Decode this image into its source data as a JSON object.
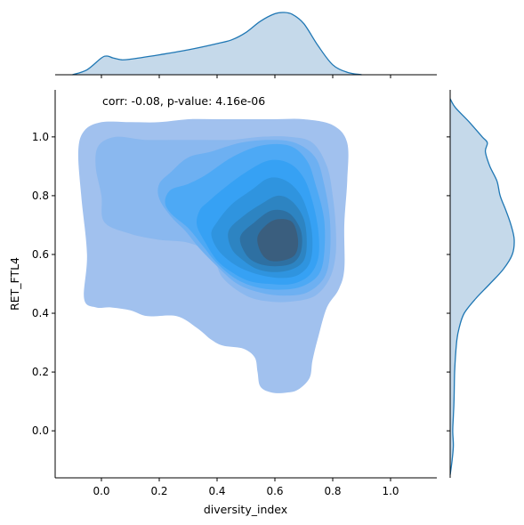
{
  "chart_data": {
    "type": "joint-kde",
    "xlabel": "diversity_index",
    "ylabel": "RET_FTL4",
    "annotation": "corr: -0.08, p-value: 4.16e-06",
    "xlim": [
      -0.16,
      1.16
    ],
    "ylim": [
      -0.16,
      1.16
    ],
    "x_ticks": [
      {
        "value": 0.0,
        "label": "0.0"
      },
      {
        "value": 0.2,
        "label": "0.2"
      },
      {
        "value": 0.4,
        "label": "0.4"
      },
      {
        "value": 0.6,
        "label": "0.6"
      },
      {
        "value": 0.8,
        "label": "0.8"
      },
      {
        "value": 1.0,
        "label": "1.0"
      }
    ],
    "y_ticks": [
      {
        "value": 0.0,
        "label": "0.0"
      },
      {
        "value": 0.2,
        "label": "0.2"
      },
      {
        "value": 0.4,
        "label": "0.4"
      },
      {
        "value": 0.6,
        "label": "0.6"
      },
      {
        "value": 0.8,
        "label": "0.8"
      },
      {
        "value": 1.0,
        "label": "1.0"
      }
    ],
    "joint_peak": {
      "x": 0.62,
      "y": 0.66
    },
    "contour_levels": [
      {
        "level": 1,
        "color": "#a1c1ee",
        "points": [
          [
            -0.06,
            1.02
          ],
          [
            0.0,
            1.05
          ],
          [
            0.1,
            1.05
          ],
          [
            0.2,
            1.05
          ],
          [
            0.3,
            1.06
          ],
          [
            0.4,
            1.06
          ],
          [
            0.5,
            1.06
          ],
          [
            0.6,
            1.06
          ],
          [
            0.7,
            1.06
          ],
          [
            0.8,
            1.04
          ],
          [
            0.85,
            0.98
          ],
          [
            0.85,
            0.85
          ],
          [
            0.84,
            0.7
          ],
          [
            0.84,
            0.55
          ],
          [
            0.82,
            0.48
          ],
          [
            0.78,
            0.42
          ],
          [
            0.75,
            0.32
          ],
          [
            0.73,
            0.24
          ],
          [
            0.72,
            0.18
          ],
          [
            0.68,
            0.14
          ],
          [
            0.64,
            0.13
          ],
          [
            0.59,
            0.13
          ],
          [
            0.55,
            0.15
          ],
          [
            0.54,
            0.2
          ],
          [
            0.53,
            0.25
          ],
          [
            0.49,
            0.28
          ],
          [
            0.42,
            0.29
          ],
          [
            0.38,
            0.31
          ],
          [
            0.33,
            0.35
          ],
          [
            0.26,
            0.39
          ],
          [
            0.16,
            0.39
          ],
          [
            0.1,
            0.41
          ],
          [
            0.03,
            0.42
          ],
          [
            -0.02,
            0.42
          ],
          [
            -0.06,
            0.45
          ],
          [
            -0.05,
            0.6
          ],
          [
            -0.07,
            0.8
          ],
          [
            -0.08,
            0.95
          ]
        ]
      },
      {
        "level": 2,
        "color": "#8ab8ef",
        "points": [
          [
            -0.01,
            0.97
          ],
          [
            0.05,
            1.0
          ],
          [
            0.15,
            0.99
          ],
          [
            0.25,
            0.99
          ],
          [
            0.35,
            0.99
          ],
          [
            0.45,
            0.99
          ],
          [
            0.55,
            1.0
          ],
          [
            0.65,
            1.0
          ],
          [
            0.73,
            0.98
          ],
          [
            0.78,
            0.9
          ],
          [
            0.8,
            0.8
          ],
          [
            0.81,
            0.7
          ],
          [
            0.81,
            0.6
          ],
          [
            0.79,
            0.52
          ],
          [
            0.74,
            0.46
          ],
          [
            0.66,
            0.44
          ],
          [
            0.58,
            0.44
          ],
          [
            0.5,
            0.46
          ],
          [
            0.42,
            0.52
          ],
          [
            0.38,
            0.6
          ],
          [
            0.3,
            0.64
          ],
          [
            0.2,
            0.65
          ],
          [
            0.1,
            0.67
          ],
          [
            0.01,
            0.71
          ],
          [
            0.0,
            0.8
          ],
          [
            -0.02,
            0.9
          ]
        ]
      },
      {
        "level": 3,
        "color": "#6db0f2",
        "points": [
          [
            0.3,
            0.93
          ],
          [
            0.38,
            0.95
          ],
          [
            0.48,
            0.98
          ],
          [
            0.58,
            0.99
          ],
          [
            0.67,
            0.98
          ],
          [
            0.74,
            0.93
          ],
          [
            0.77,
            0.84
          ],
          [
            0.79,
            0.72
          ],
          [
            0.79,
            0.6
          ],
          [
            0.77,
            0.52
          ],
          [
            0.71,
            0.47
          ],
          [
            0.63,
            0.46
          ],
          [
            0.55,
            0.47
          ],
          [
            0.47,
            0.5
          ],
          [
            0.4,
            0.56
          ],
          [
            0.34,
            0.62
          ],
          [
            0.29,
            0.68
          ],
          [
            0.24,
            0.73
          ],
          [
            0.2,
            0.79
          ],
          [
            0.2,
            0.84
          ],
          [
            0.24,
            0.88
          ]
        ]
      },
      {
        "level": 4,
        "color": "#4da9f5",
        "points": [
          [
            0.3,
            0.84
          ],
          [
            0.36,
            0.87
          ],
          [
            0.45,
            0.93
          ],
          [
            0.55,
            0.97
          ],
          [
            0.65,
            0.97
          ],
          [
            0.71,
            0.92
          ],
          [
            0.74,
            0.84
          ],
          [
            0.77,
            0.72
          ],
          [
            0.77,
            0.6
          ],
          [
            0.75,
            0.53
          ],
          [
            0.69,
            0.49
          ],
          [
            0.61,
            0.48
          ],
          [
            0.53,
            0.49
          ],
          [
            0.46,
            0.52
          ],
          [
            0.4,
            0.57
          ],
          [
            0.35,
            0.63
          ],
          [
            0.3,
            0.69
          ],
          [
            0.24,
            0.74
          ],
          [
            0.22,
            0.78
          ],
          [
            0.24,
            0.82
          ]
        ]
      },
      {
        "level": 5,
        "color": "#36a1f4",
        "points": [
          [
            0.37,
            0.78
          ],
          [
            0.43,
            0.83
          ],
          [
            0.5,
            0.88
          ],
          [
            0.58,
            0.92
          ],
          [
            0.65,
            0.91
          ],
          [
            0.7,
            0.86
          ],
          [
            0.73,
            0.78
          ],
          [
            0.75,
            0.68
          ],
          [
            0.75,
            0.59
          ],
          [
            0.72,
            0.53
          ],
          [
            0.66,
            0.5
          ],
          [
            0.58,
            0.5
          ],
          [
            0.51,
            0.51
          ],
          [
            0.45,
            0.54
          ],
          [
            0.4,
            0.58
          ],
          [
            0.36,
            0.64
          ],
          [
            0.33,
            0.7
          ],
          [
            0.34,
            0.75
          ]
        ]
      },
      {
        "level": 6,
        "color": "#2f94df",
        "points": [
          [
            0.4,
            0.71
          ],
          [
            0.45,
            0.77
          ],
          [
            0.52,
            0.82
          ],
          [
            0.58,
            0.86
          ],
          [
            0.64,
            0.85
          ],
          [
            0.69,
            0.8
          ],
          [
            0.72,
            0.72
          ],
          [
            0.73,
            0.64
          ],
          [
            0.72,
            0.57
          ],
          [
            0.68,
            0.53
          ],
          [
            0.62,
            0.52
          ],
          [
            0.55,
            0.53
          ],
          [
            0.49,
            0.55
          ],
          [
            0.44,
            0.58
          ],
          [
            0.4,
            0.62
          ],
          [
            0.38,
            0.67
          ]
        ]
      },
      {
        "level": 7,
        "color": "#2d84c2",
        "points": [
          [
            0.44,
            0.68
          ],
          [
            0.49,
            0.73
          ],
          [
            0.55,
            0.77
          ],
          [
            0.61,
            0.8
          ],
          [
            0.66,
            0.78
          ],
          [
            0.7,
            0.72
          ],
          [
            0.71,
            0.64
          ],
          [
            0.7,
            0.58
          ],
          [
            0.66,
            0.55
          ],
          [
            0.6,
            0.54
          ],
          [
            0.54,
            0.55
          ],
          [
            0.49,
            0.58
          ],
          [
            0.45,
            0.62
          ]
        ]
      },
      {
        "level": 8,
        "color": "#2e70a2",
        "points": [
          [
            0.48,
            0.66
          ],
          [
            0.53,
            0.71
          ],
          [
            0.59,
            0.75
          ],
          [
            0.65,
            0.74
          ],
          [
            0.69,
            0.68
          ],
          [
            0.69,
            0.61
          ],
          [
            0.66,
            0.57
          ],
          [
            0.6,
            0.56
          ],
          [
            0.54,
            0.57
          ],
          [
            0.5,
            0.6
          ]
        ]
      },
      {
        "level": 9,
        "color": "#3a5e7e",
        "points": [
          [
            0.54,
            0.66
          ],
          [
            0.57,
            0.7
          ],
          [
            0.61,
            0.72
          ],
          [
            0.66,
            0.71
          ],
          [
            0.68,
            0.65
          ],
          [
            0.67,
            0.6
          ],
          [
            0.63,
            0.58
          ],
          [
            0.58,
            0.58
          ],
          [
            0.55,
            0.61
          ]
        ]
      }
    ],
    "marginal_x": {
      "x": [
        -0.1,
        -0.05,
        0.0,
        0.02,
        0.04,
        0.07,
        0.1,
        0.2,
        0.3,
        0.4,
        0.45,
        0.5,
        0.55,
        0.6,
        0.63,
        0.66,
        0.7,
        0.75,
        0.8,
        0.85,
        0.9
      ],
      "density": [
        0.0,
        0.08,
        0.27,
        0.3,
        0.27,
        0.24,
        0.25,
        0.32,
        0.4,
        0.5,
        0.56,
        0.68,
        0.86,
        0.98,
        1.0,
        0.97,
        0.82,
        0.46,
        0.16,
        0.04,
        0.0
      ]
    },
    "marginal_y": {
      "y": [
        -0.15,
        -0.1,
        -0.05,
        0.0,
        0.05,
        0.1,
        0.2,
        0.3,
        0.35,
        0.4,
        0.45,
        0.5,
        0.55,
        0.6,
        0.65,
        0.7,
        0.75,
        0.8,
        0.85,
        0.9,
        0.95,
        0.98,
        1.0,
        1.05,
        1.1,
        1.13
      ],
      "density": [
        0.0,
        0.03,
        0.05,
        0.04,
        0.05,
        0.06,
        0.07,
        0.1,
        0.14,
        0.22,
        0.4,
        0.62,
        0.83,
        0.97,
        1.0,
        0.95,
        0.87,
        0.78,
        0.73,
        0.62,
        0.55,
        0.58,
        0.5,
        0.3,
        0.08,
        0.0
      ]
    }
  }
}
